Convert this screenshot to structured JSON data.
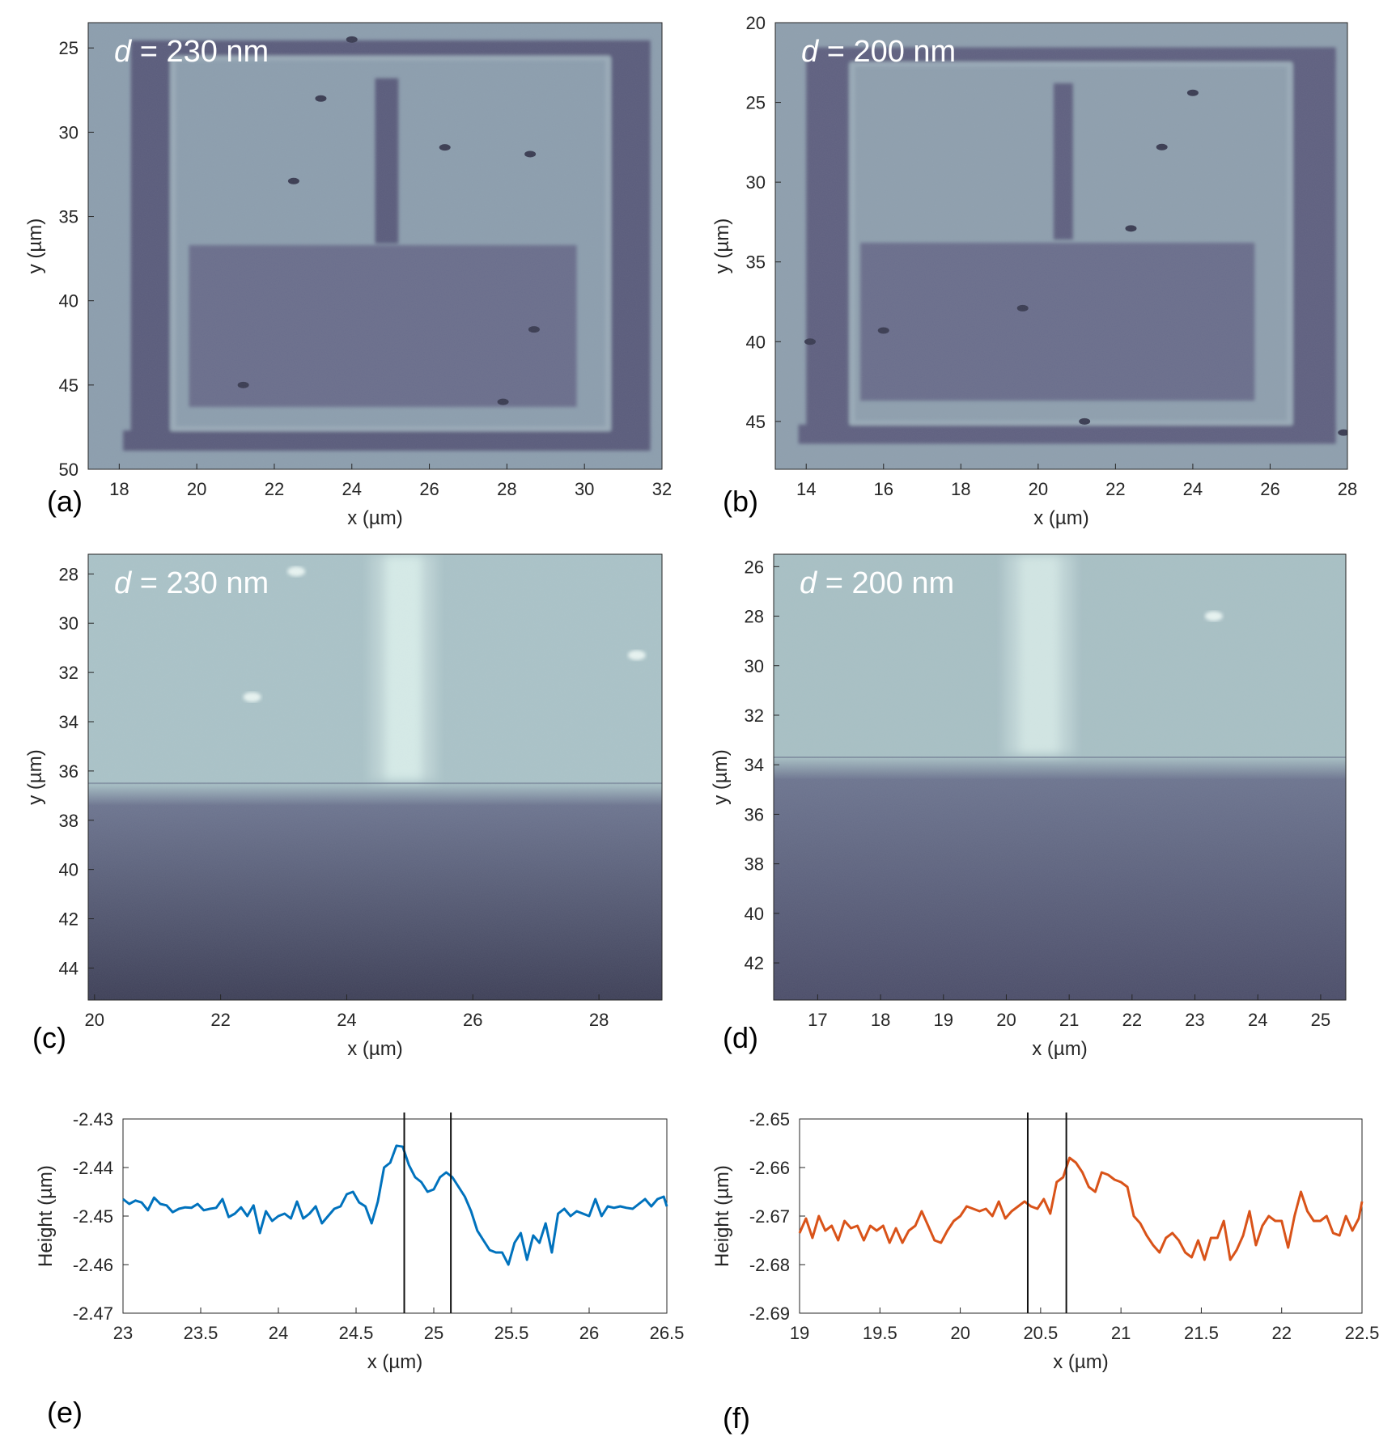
{
  "chart_data": [
    {
      "panel": "(a)",
      "type": "heatmap",
      "annotation": {
        "var": "d",
        "text": " = 230 nm"
      },
      "xlabel": "x  (µm)",
      "ylabel": "y  (µm)",
      "xlim": [
        17.2,
        32
      ],
      "ylim": [
        23.5,
        50
      ],
      "xticks": [
        18,
        20,
        22,
        24,
        26,
        28,
        30,
        32
      ],
      "yticks": [
        25,
        30,
        35,
        40,
        45,
        50
      ],
      "features": {
        "frame": {
          "x1": 18.3,
          "x2": 31.7,
          "y1": 25,
          "y2": 48.3,
          "w": 1.0
        },
        "stripe": {
          "x1": 24.6,
          "x2": 25.2,
          "y1": 26.8,
          "y2": 36.6
        },
        "pad": {
          "x1": 19.8,
          "x2": 29.8,
          "y1": 36.7,
          "y2": 46.3
        },
        "background": "#8c9eae",
        "dark": "#5a5c7c",
        "specks": [
          [
            24.0,
            24.5
          ],
          [
            23.2,
            28.0
          ],
          [
            28.6,
            31.3
          ],
          [
            22.5,
            32.9
          ],
          [
            26.4,
            30.9
          ],
          [
            21.2,
            45.0
          ],
          [
            27.9,
            46.0
          ],
          [
            28.7,
            41.7
          ]
        ]
      }
    },
    {
      "panel": "(b)",
      "type": "heatmap",
      "annotation": {
        "var": "d",
        "text": " = 200 nm"
      },
      "xlabel": "x  (µm)",
      "ylabel": "y  (µm)",
      "xlim": [
        13.2,
        28
      ],
      "ylim": [
        20,
        48
      ],
      "xticks": [
        14,
        16,
        18,
        20,
        22,
        24,
        26,
        28
      ],
      "yticks": [
        20,
        25,
        30,
        35,
        40,
        45
      ],
      "features": {
        "frame": {
          "x1": 14.0,
          "x2": 27.7,
          "y1": 22,
          "y2": 45.8,
          "w": 1.1
        },
        "stripe": {
          "x1": 20.4,
          "x2": 20.9,
          "y1": 23.8,
          "y2": 33.6
        },
        "pad": {
          "x1": 15.4,
          "x2": 25.6,
          "y1": 33.8,
          "y2": 43.7
        },
        "background": "#8e9fae",
        "dark": "#5e6080",
        "specks": [
          [
            24.0,
            24.4
          ],
          [
            23.2,
            27.8
          ],
          [
            22.4,
            32.9
          ],
          [
            16.0,
            39.3
          ],
          [
            19.6,
            37.9
          ],
          [
            21.2,
            45.0
          ],
          [
            27.9,
            45.7
          ],
          [
            14.1,
            40.0
          ]
        ]
      }
    },
    {
      "panel": "(c)",
      "type": "heatmap",
      "annotation": {
        "var": "d",
        "text": " = 230 nm"
      },
      "xlabel": "x  (µm)",
      "ylabel": "y  (µm)",
      "xlim": [
        19.9,
        29
      ],
      "ylim": [
        27.2,
        45.3
      ],
      "xticks": [
        20,
        22,
        24,
        26,
        28
      ],
      "yticks": [
        28,
        30,
        32,
        34,
        36,
        38,
        40,
        42,
        44
      ],
      "features": {
        "stripe": {
          "x1": 24.6,
          "x2": 25.2,
          "y1": 27.2,
          "y2": 36.4
        },
        "edge": 36.5,
        "top": "#aac3c8",
        "bottom": "#3e4058",
        "stripe_color": "#d6ebe8",
        "dots": [
          [
            23.2,
            27.9
          ],
          [
            28.6,
            31.3
          ],
          [
            22.5,
            33.0
          ]
        ]
      }
    },
    {
      "panel": "(d)",
      "type": "heatmap",
      "annotation": {
        "var": "d",
        "text": " = 200 nm"
      },
      "xlabel": "x  (µm)",
      "ylabel": "y  (µm)",
      "xlim": [
        16.3,
        25.4
      ],
      "ylim": [
        25.5,
        43.5
      ],
      "xticks": [
        17,
        18,
        19,
        20,
        21,
        22,
        23,
        24,
        25
      ],
      "yticks": [
        26,
        28,
        30,
        32,
        34,
        36,
        38,
        40,
        42
      ],
      "features": {
        "stripe": {
          "x1": 20.2,
          "x2": 20.85,
          "y1": 25.5,
          "y2": 33.6
        },
        "edge": 33.7,
        "top": "#a8c0c5",
        "bottom": "#4c4e6a",
        "stripe_color": "#d2e6e4",
        "dots": [
          [
            23.3,
            28.0
          ]
        ]
      }
    },
    {
      "panel": "(e)",
      "type": "line",
      "xlabel": "x (µm)",
      "ylabel": "Height (µm)",
      "xlim": [
        23,
        26.5
      ],
      "ylim": [
        -2.47,
        -2.43
      ],
      "xticks": [
        23,
        23.5,
        24,
        24.5,
        25,
        25.5,
        26,
        26.5
      ],
      "xtick_labels": [
        "23",
        "23.5",
        "24",
        "24.5",
        "25",
        "25.5",
        "26",
        "26.5"
      ],
      "yticks": [
        -2.47,
        -2.46,
        -2.45,
        -2.44,
        -2.43
      ],
      "color": "#0072bd",
      "markers": [
        24.81,
        25.11
      ],
      "series": [
        {
          "x": [
            23.0,
            23.04,
            23.08,
            23.12,
            23.16,
            23.2,
            23.24,
            23.28,
            23.32,
            23.36,
            23.4,
            23.44,
            23.48,
            23.52,
            23.56,
            23.6,
            23.64,
            23.68,
            23.72,
            23.76,
            23.8,
            23.84,
            23.88,
            23.92,
            23.96,
            24.0,
            24.04,
            24.08,
            24.12,
            24.16,
            24.2,
            24.24,
            24.28,
            24.32,
            24.36,
            24.4,
            24.44,
            24.48,
            24.52,
            24.56,
            24.6,
            24.64,
            24.68,
            24.72,
            24.76,
            24.8,
            24.84,
            24.88,
            24.92,
            24.96,
            25.0,
            25.04,
            25.08,
            25.12,
            25.16,
            25.2,
            25.24,
            25.28,
            25.32,
            25.36,
            25.4,
            25.44,
            25.48,
            25.52,
            25.56,
            25.6,
            25.64,
            25.68,
            25.72,
            25.76,
            25.8,
            25.84,
            25.88,
            25.92,
            25.96,
            26.0,
            26.04,
            26.08,
            26.12,
            26.16,
            26.2,
            26.24,
            26.28,
            26.32,
            26.36,
            26.4,
            26.44,
            26.48,
            26.5
          ],
          "y": [
            -2.4465,
            -2.4475,
            -2.4468,
            -2.4472,
            -2.4488,
            -2.4462,
            -2.4475,
            -2.4478,
            -2.4492,
            -2.4485,
            -2.4482,
            -2.4483,
            -2.4475,
            -2.4488,
            -2.4485,
            -2.4483,
            -2.4465,
            -2.4502,
            -2.4495,
            -2.4482,
            -2.45,
            -2.4478,
            -2.4535,
            -2.449,
            -2.451,
            -2.45,
            -2.4495,
            -2.4505,
            -2.447,
            -2.4505,
            -2.4495,
            -2.448,
            -2.4515,
            -2.45,
            -2.4485,
            -2.448,
            -2.4455,
            -2.445,
            -2.4472,
            -2.448,
            -2.4515,
            -2.447,
            -2.44,
            -2.439,
            -2.4355,
            -2.4357,
            -2.4395,
            -2.442,
            -2.443,
            -2.445,
            -2.4445,
            -2.442,
            -2.441,
            -2.442,
            -2.444,
            -2.446,
            -2.449,
            -2.453,
            -2.455,
            -2.457,
            -2.4575,
            -2.4575,
            -2.46,
            -2.4555,
            -2.4535,
            -2.459,
            -2.454,
            -2.4555,
            -2.4515,
            -2.4575,
            -2.4495,
            -2.4485,
            -2.45,
            -2.449,
            -2.4495,
            -2.45,
            -2.4465,
            -2.45,
            -2.448,
            -2.4483,
            -2.448,
            -2.4483,
            -2.4485,
            -2.4475,
            -2.4465,
            -2.448,
            -2.4465,
            -2.446,
            -2.448
          ]
        }
      ]
    },
    {
      "panel": "(f)",
      "type": "line",
      "xlabel": "x  (µm)",
      "ylabel": "Height (µm)",
      "xlim": [
        19,
        22.5
      ],
      "ylim": [
        -2.69,
        -2.65
      ],
      "xticks": [
        19,
        19.5,
        20,
        20.5,
        21,
        21.5,
        22,
        22.5
      ],
      "xtick_labels": [
        "19",
        "19.5",
        "20",
        "20.5",
        "21",
        "21.5",
        "22",
        "22.5"
      ],
      "yticks": [
        -2.69,
        -2.68,
        -2.67,
        -2.66,
        -2.65
      ],
      "color": "#d95319",
      "markers": [
        20.42,
        20.66
      ],
      "series": [
        {
          "x": [
            19.0,
            19.04,
            19.08,
            19.12,
            19.16,
            19.2,
            19.24,
            19.28,
            19.32,
            19.36,
            19.4,
            19.44,
            19.48,
            19.52,
            19.56,
            19.6,
            19.64,
            19.68,
            19.72,
            19.76,
            19.8,
            19.84,
            19.88,
            19.92,
            19.96,
            20.0,
            20.04,
            20.08,
            20.12,
            20.16,
            20.2,
            20.24,
            20.28,
            20.32,
            20.36,
            20.4,
            20.44,
            20.48,
            20.52,
            20.56,
            20.6,
            20.64,
            20.68,
            20.72,
            20.76,
            20.8,
            20.84,
            20.88,
            20.92,
            20.96,
            21.0,
            21.04,
            21.08,
            21.12,
            21.16,
            21.2,
            21.24,
            21.28,
            21.32,
            21.36,
            21.4,
            21.44,
            21.48,
            21.52,
            21.56,
            21.6,
            21.64,
            21.68,
            21.72,
            21.76,
            21.8,
            21.84,
            21.88,
            21.92,
            21.96,
            22.0,
            22.04,
            22.08,
            22.12,
            22.16,
            22.2,
            22.24,
            22.28,
            22.32,
            22.36,
            22.4,
            22.44,
            22.48,
            22.5
          ],
          "y": [
            -2.6735,
            -2.6705,
            -2.6745,
            -2.67,
            -2.673,
            -2.672,
            -2.675,
            -2.671,
            -2.6725,
            -2.672,
            -2.675,
            -2.672,
            -2.673,
            -2.672,
            -2.6755,
            -2.6725,
            -2.6755,
            -2.673,
            -2.672,
            -2.669,
            -2.672,
            -2.675,
            -2.6755,
            -2.673,
            -2.671,
            -2.67,
            -2.668,
            -2.6685,
            -2.669,
            -2.6685,
            -2.67,
            -2.667,
            -2.6705,
            -2.669,
            -2.668,
            -2.667,
            -2.668,
            -2.6685,
            -2.6665,
            -2.6695,
            -2.663,
            -2.662,
            -2.658,
            -2.659,
            -2.661,
            -2.664,
            -2.665,
            -2.661,
            -2.6615,
            -2.6625,
            -2.663,
            -2.664,
            -2.67,
            -2.6715,
            -2.674,
            -2.676,
            -2.6775,
            -2.6745,
            -2.6735,
            -2.675,
            -2.6775,
            -2.6785,
            -2.675,
            -2.679,
            -2.6745,
            -2.6745,
            -2.671,
            -2.679,
            -2.677,
            -2.674,
            -2.669,
            -2.676,
            -2.672,
            -2.67,
            -2.671,
            -2.671,
            -2.6765,
            -2.67,
            -2.665,
            -2.669,
            -2.671,
            -2.671,
            -2.67,
            -2.6735,
            -2.674,
            -2.67,
            -2.673,
            -2.6705,
            -2.667
          ]
        }
      ]
    }
  ]
}
